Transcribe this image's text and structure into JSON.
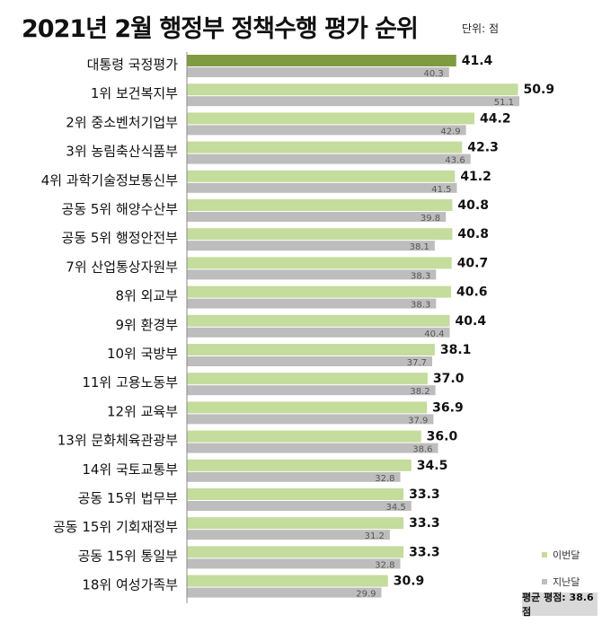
{
  "header": {
    "title": "2021년 2월 행정부 정책수행 평가 순위",
    "unit": "단위: 점"
  },
  "legend": {
    "current": "이번달",
    "previous": "지난달"
  },
  "average_label": "평균 평점: 38.6점",
  "colors": {
    "highlight": "#7e9b3f",
    "current": "#c4dc9c",
    "previous": "#bdbdbd",
    "axis": "#8a8a8a"
  },
  "chart_data": {
    "type": "bar",
    "orientation": "horizontal",
    "categories": [
      "대통령 국정평가",
      "1위 보건복지부",
      "2위 중소벤처기업부",
      "3위 농림축산식품부",
      "4위 과학기술정보통신부",
      "공동 5위 해양수산부",
      "공동 5위 행정안전부",
      "7위 산업통상자원부",
      "8위 외교부",
      "9위 환경부",
      "10위 국방부",
      "11위 고용노동부",
      "12위 교육부",
      "13위 문화체육관광부",
      "14위 국토교통부",
      "공동 15위 법무부",
      "공동 15위 기회재정부",
      "공동 15위 통일부",
      "18위 여성가족부"
    ],
    "series": [
      {
        "name": "이번달",
        "values": [
          41.4,
          50.9,
          44.2,
          42.3,
          41.2,
          40.8,
          40.8,
          40.7,
          40.6,
          40.4,
          38.1,
          37.0,
          36.9,
          36.0,
          34.5,
          33.3,
          33.3,
          33.3,
          30.9
        ],
        "labels": [
          "41.4",
          "50.9",
          "44.2",
          "42.3",
          "41.2",
          "40.8",
          "40.8",
          "40.7",
          "40.6",
          "40.4",
          "38.1",
          "37.0",
          "36.9",
          "36.0",
          "34.5",
          "33.3",
          "33.3",
          "33.3",
          "30.9"
        ]
      },
      {
        "name": "지난달",
        "values": [
          40.3,
          51.1,
          42.9,
          43.6,
          41.5,
          39.8,
          38.1,
          38.3,
          38.3,
          40.4,
          37.7,
          38.2,
          37.9,
          38.6,
          32.8,
          34.5,
          31.2,
          32.8,
          29.9
        ],
        "labels": [
          "40.3",
          "51.1",
          "42.9",
          "43.6",
          "41.5",
          "39.8",
          "38.1",
          "38.3",
          "38.3",
          "40.4",
          "37.7",
          "38.2",
          "37.9",
          "38.6",
          "32.8",
          "34.5",
          "31.2",
          "32.8",
          "29.9"
        ]
      }
    ],
    "highlight_index": 0,
    "xlim": [
      0,
      51.1
    ]
  }
}
